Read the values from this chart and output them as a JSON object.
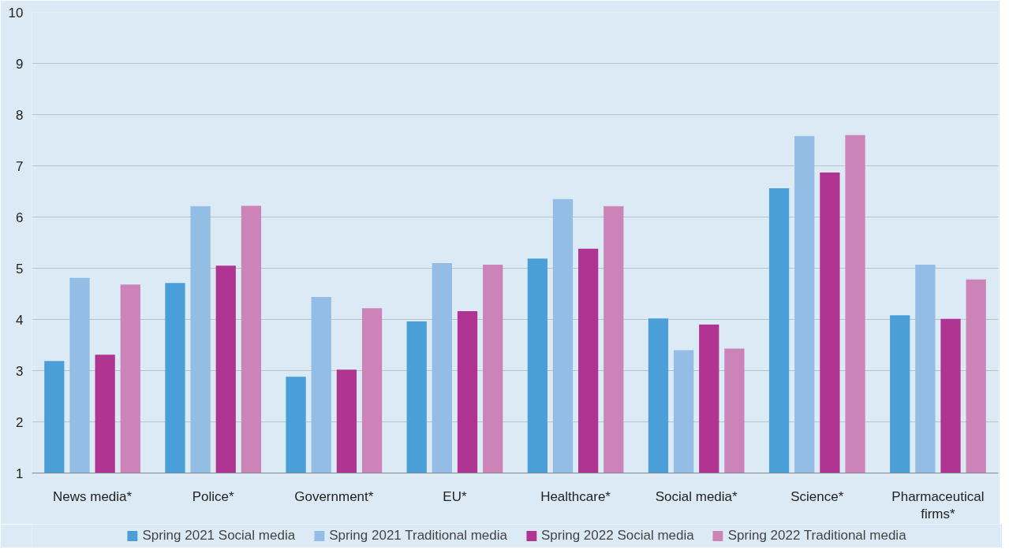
{
  "chart_data": {
    "type": "bar",
    "categories": [
      "News media*",
      "Police*",
      "Government*",
      "EU*",
      "Healthcare*",
      "Social media*",
      "Science*",
      "Pharmaceutical firms*"
    ],
    "series": [
      {
        "name": "Spring 2021 Social media",
        "color": "#4a9fd8",
        "values": [
          3.19,
          4.71,
          2.88,
          3.96,
          5.19,
          4.02,
          6.56,
          4.08
        ]
      },
      {
        "name": "Spring 2021 Traditional media",
        "color": "#93bde4",
        "values": [
          4.81,
          6.21,
          4.44,
          5.1,
          6.35,
          3.4,
          7.58,
          5.07
        ]
      },
      {
        "name": "Spring 2022 Social media",
        "color": "#b03592",
        "values": [
          3.31,
          5.05,
          3.02,
          4.16,
          5.38,
          3.9,
          6.87,
          4.01
        ]
      },
      {
        "name": "Spring 2022 Traditional media",
        "color": "#cc84b8",
        "values": [
          4.68,
          6.22,
          4.22,
          5.07,
          6.21,
          3.43,
          7.6,
          4.78
        ]
      }
    ],
    "ylim": [
      1,
      10
    ],
    "yticks": [
      1,
      2,
      3,
      4,
      5,
      6,
      7,
      8,
      9,
      10
    ],
    "grid": "y",
    "legend": "bottom"
  }
}
